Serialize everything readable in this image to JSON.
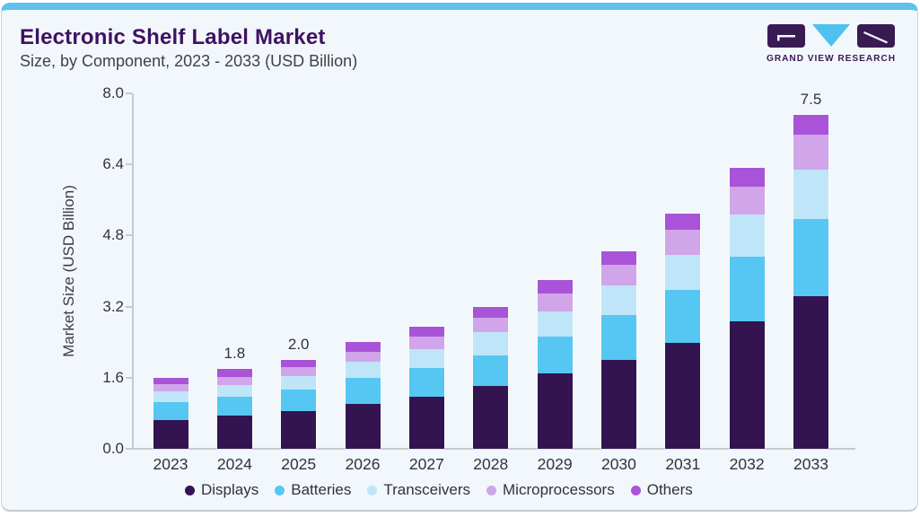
{
  "page": {
    "background": "#ffffff",
    "card_background": "#f2f7fb",
    "top_bar_color": "#5ec2ec"
  },
  "header": {
    "title": "Electronic Shelf Label Market",
    "subtitle": "Size, by Component, 2023 - 2033 (USD Billion)"
  },
  "logo": {
    "text": "GRAND VIEW RESEARCH",
    "dark_color": "#3a1a53",
    "accent_color": "#4ec1ef"
  },
  "chart_data": {
    "type": "bar",
    "stacked": true,
    "title": "Electronic Shelf Label Market Size, by Component, 2023 - 2033 (USD Billion)",
    "xlabel": "",
    "ylabel": "Market Size (USD Billion)",
    "categories": [
      "2023",
      "2024",
      "2025",
      "2026",
      "2027",
      "2028",
      "2029",
      "2030",
      "2031",
      "2032",
      "2033"
    ],
    "series": [
      {
        "name": "Displays",
        "color": "#331450",
        "values": [
          0.65,
          0.75,
          0.85,
          1.02,
          1.18,
          1.41,
          1.69,
          2.01,
          2.38,
          2.86,
          3.43
        ]
      },
      {
        "name": "Batteries",
        "color": "#56c7f2",
        "values": [
          0.4,
          0.42,
          0.48,
          0.58,
          0.63,
          0.69,
          0.83,
          1.0,
          1.2,
          1.46,
          1.74
        ]
      },
      {
        "name": "Transceivers",
        "color": "#bee6f8",
        "values": [
          0.24,
          0.27,
          0.3,
          0.35,
          0.43,
          0.53,
          0.57,
          0.67,
          0.79,
          0.95,
          1.12
        ]
      },
      {
        "name": "Microprocessors",
        "color": "#d0a5ea",
        "values": [
          0.16,
          0.18,
          0.2,
          0.23,
          0.29,
          0.33,
          0.41,
          0.47,
          0.57,
          0.63,
          0.78
        ]
      },
      {
        "name": "Others",
        "color": "#a953d8",
        "values": [
          0.15,
          0.18,
          0.17,
          0.22,
          0.22,
          0.24,
          0.29,
          0.3,
          0.35,
          0.43,
          0.44
        ]
      }
    ],
    "total_labels": [
      "",
      "1.8",
      "2.0",
      "",
      "",
      "",
      "",
      "",
      "",
      "",
      "7.5"
    ],
    "ytick_labels": [
      "0.0",
      "1.6",
      "3.2",
      "4.8",
      "6.4",
      "8.0"
    ],
    "ylim": [
      0,
      8
    ],
    "grid": false,
    "legend_position": "bottom"
  }
}
